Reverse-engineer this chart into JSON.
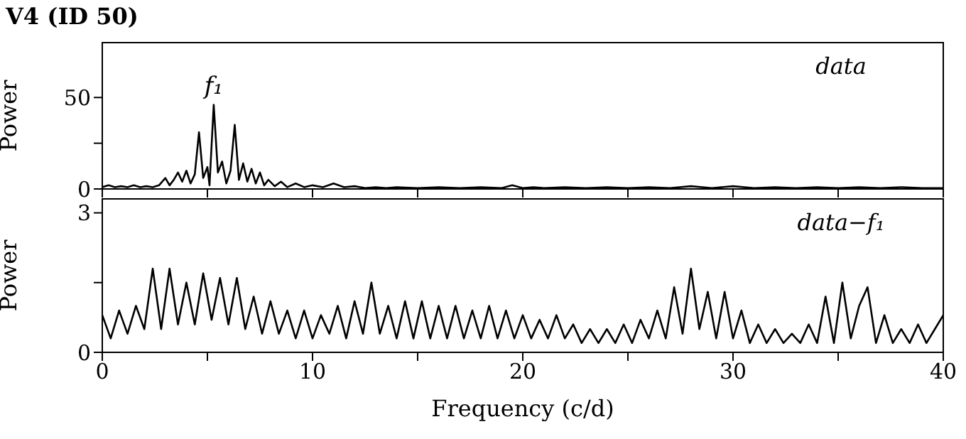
{
  "chart_data": [
    {
      "type": "line",
      "title": "V4 (ID 50)",
      "ylabel": "Power",
      "tick_labels": "y",
      "grid": false,
      "legend": false,
      "marker": "none",
      "line_style": "solid",
      "annotations": [
        {
          "text": "f₁",
          "x": 5.3,
          "y": 46
        },
        "data"
      ],
      "xlim": [
        0,
        40
      ],
      "xticks": [
        {
          "value": 0,
          "label": null
        },
        {
          "value": 5,
          "label": null
        },
        {
          "value": 10,
          "label": null
        },
        {
          "value": 15,
          "label": null
        },
        {
          "value": 20,
          "label": null
        },
        {
          "value": 25,
          "label": null
        },
        {
          "value": 30,
          "label": null
        },
        {
          "value": 35,
          "label": null
        },
        {
          "value": 40,
          "label": null
        }
      ],
      "ylim": [
        0,
        80
      ],
      "yticks": [
        0,
        {
          "value": 25,
          "label": null
        },
        50
      ],
      "series": [
        {
          "color": "#000000",
          "x": [
            0,
            0.3,
            0.6,
            0.9,
            1.2,
            1.5,
            1.8,
            2.1,
            2.4,
            2.7,
            3.0,
            3.2,
            3.4,
            3.6,
            3.8,
            4.0,
            4.2,
            4.4,
            4.6,
            4.8,
            5.0,
            5.1,
            5.3,
            5.5,
            5.7,
            5.9,
            6.1,
            6.3,
            6.5,
            6.7,
            6.9,
            7.1,
            7.3,
            7.5,
            7.7,
            7.9,
            8.2,
            8.5,
            8.8,
            9.2,
            9.6,
            10,
            10.5,
            11,
            11.5,
            12,
            12.5,
            13,
            13.5,
            14,
            15,
            16,
            17,
            18,
            19,
            19.5,
            20,
            20.5,
            21,
            22,
            23,
            24,
            25,
            26,
            27,
            28,
            29,
            30,
            31,
            32,
            33,
            34,
            35,
            36,
            37,
            38,
            39,
            40
          ],
          "values": [
            1,
            2,
            1,
            1.5,
            1,
            2,
            1,
            1.5,
            1,
            2,
            6,
            2,
            5,
            9,
            4,
            10,
            3,
            8,
            31,
            6,
            12,
            2,
            46,
            9,
            15,
            3,
            10,
            35,
            5,
            14,
            4,
            11,
            3,
            9,
            2,
            5,
            1.5,
            4,
            1,
            3,
            1,
            2,
            1,
            3,
            1,
            1.5,
            0.5,
            1,
            0.5,
            1,
            0.5,
            1,
            0.5,
            1,
            0.5,
            2,
            0.5,
            1,
            0.5,
            1,
            0.5,
            1,
            0.5,
            1,
            0.5,
            1.5,
            0.5,
            1.5,
            0.5,
            1,
            0.5,
            1,
            0.5,
            1,
            0.5,
            1,
            0.5,
            0.5
          ]
        }
      ]
    },
    {
      "type": "line",
      "xlabel": "Frequency (c/d)",
      "ylabel": "Power",
      "grid": false,
      "legend": false,
      "marker": "none",
      "line_style": "solid",
      "annotations": [
        "data−f₁"
      ],
      "xlim": [
        0,
        40
      ],
      "xticks": [
        0,
        {
          "value": 5,
          "label": null
        },
        10,
        {
          "value": 15,
          "label": null
        },
        20,
        {
          "value": 25,
          "label": null
        },
        30,
        {
          "value": 35,
          "label": null
        },
        40
      ],
      "ylim": [
        0,
        3.3
      ],
      "yticks": [
        0,
        {
          "value": 1.5,
          "label": null
        },
        3
      ],
      "series": [
        {
          "color": "#000000",
          "x": [
            0,
            0.4,
            0.8,
            1.2,
            1.6,
            2.0,
            2.4,
            2.8,
            3.2,
            3.6,
            4.0,
            4.4,
            4.8,
            5.2,
            5.6,
            6.0,
            6.4,
            6.8,
            7.2,
            7.6,
            8.0,
            8.4,
            8.8,
            9.2,
            9.6,
            10.0,
            10.4,
            10.8,
            11.2,
            11.6,
            12.0,
            12.4,
            12.8,
            13.2,
            13.6,
            14.0,
            14.4,
            14.8,
            15.2,
            15.6,
            16.0,
            16.4,
            16.8,
            17.2,
            17.6,
            18.0,
            18.4,
            18.8,
            19.2,
            19.6,
            20.0,
            20.4,
            20.8,
            21.2,
            21.6,
            22.0,
            22.4,
            22.8,
            23.2,
            23.6,
            24.0,
            24.4,
            24.8,
            25.2,
            25.6,
            26.0,
            26.4,
            26.8,
            27.2,
            27.6,
            28.0,
            28.4,
            28.8,
            29.2,
            29.6,
            30.0,
            30.4,
            30.8,
            31.2,
            31.6,
            32.0,
            32.4,
            32.8,
            33.2,
            33.6,
            34.0,
            34.4,
            34.8,
            35.2,
            35.6,
            36.0,
            36.4,
            36.8,
            37.2,
            37.6,
            38.0,
            38.4,
            38.8,
            39.2,
            39.6,
            40.0
          ],
          "values": [
            0.8,
            0.3,
            0.9,
            0.4,
            1.0,
            0.5,
            1.8,
            0.5,
            1.8,
            0.6,
            1.5,
            0.6,
            1.7,
            0.7,
            1.6,
            0.6,
            1.6,
            0.5,
            1.2,
            0.4,
            1.1,
            0.4,
            0.9,
            0.3,
            0.9,
            0.3,
            0.8,
            0.4,
            1.0,
            0.3,
            1.1,
            0.4,
            1.5,
            0.4,
            1.0,
            0.3,
            1.1,
            0.3,
            1.1,
            0.3,
            1.0,
            0.3,
            1.0,
            0.3,
            0.9,
            0.3,
            1.0,
            0.3,
            0.9,
            0.3,
            0.8,
            0.3,
            0.7,
            0.3,
            0.8,
            0.3,
            0.6,
            0.2,
            0.5,
            0.2,
            0.5,
            0.2,
            0.6,
            0.2,
            0.7,
            0.3,
            0.9,
            0.3,
            1.4,
            0.4,
            1.8,
            0.5,
            1.3,
            0.3,
            1.3,
            0.3,
            0.9,
            0.2,
            0.6,
            0.2,
            0.5,
            0.2,
            0.4,
            0.2,
            0.6,
            0.2,
            1.2,
            0.2,
            1.5,
            0.3,
            1.0,
            1.4,
            0.2,
            0.8,
            0.2,
            0.5,
            0.2,
            0.6,
            0.2,
            0.5,
            0.8
          ]
        }
      ]
    }
  ]
}
